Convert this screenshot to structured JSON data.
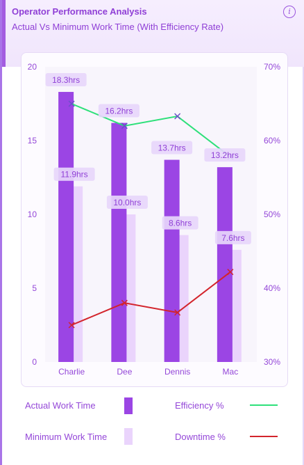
{
  "header": {
    "title": "Operator Performance Analysis",
    "subtitle": "Actual Vs Minimum Work Time (With Efficiency Rate)",
    "info_glyph": "i"
  },
  "legend": {
    "actual_label": "Actual Work Time",
    "minimum_label": "Minimum Work Time",
    "efficiency_label": "Efficiency %",
    "downtime_label": "Downtime %"
  },
  "colors": {
    "actual": "#9b45e4",
    "minimum": "#ead4fc",
    "efficiency": "#2ee07a",
    "downtime": "#d3242c",
    "accent": "#8f3fd6"
  },
  "chart_data": {
    "type": "bar",
    "categories": [
      "Charlie",
      "Dee",
      "Dennis",
      "Mac"
    ],
    "series": [
      {
        "name": "Actual Work Time",
        "axis": "left",
        "values": [
          18.3,
          16.2,
          13.7,
          13.2
        ],
        "labels": [
          "18.3hrs",
          "16.2hrs",
          "13.7hrs",
          "13.2hrs"
        ]
      },
      {
        "name": "Minimum Work Time",
        "axis": "left",
        "values": [
          11.9,
          10.0,
          8.6,
          7.6
        ],
        "labels": [
          "11.9hrs",
          "10.0hrs",
          "8.6hrs",
          "7.6hrs"
        ]
      },
      {
        "name": "Efficiency %",
        "type": "line",
        "axis": "right",
        "values": [
          65,
          62,
          63.3,
          57.8
        ]
      },
      {
        "name": "Downtime %",
        "type": "line",
        "axis": "right",
        "values": [
          35,
          38,
          36.7,
          42.2
        ]
      }
    ],
    "y_left": {
      "min": 0,
      "max": 20,
      "ticks": [
        0,
        5,
        10,
        15,
        20
      ],
      "tick_labels": [
        "0",
        "5",
        "10",
        "15",
        "20"
      ]
    },
    "y_right": {
      "min": 30,
      "max": 70,
      "ticks": [
        30,
        40,
        50,
        60,
        70
      ],
      "tick_labels": [
        "30%",
        "40%",
        "50%",
        "60%",
        "70%"
      ]
    },
    "title": "",
    "xlabel": "",
    "ylabel": "",
    "grid": false,
    "legend_position": "bottom"
  }
}
